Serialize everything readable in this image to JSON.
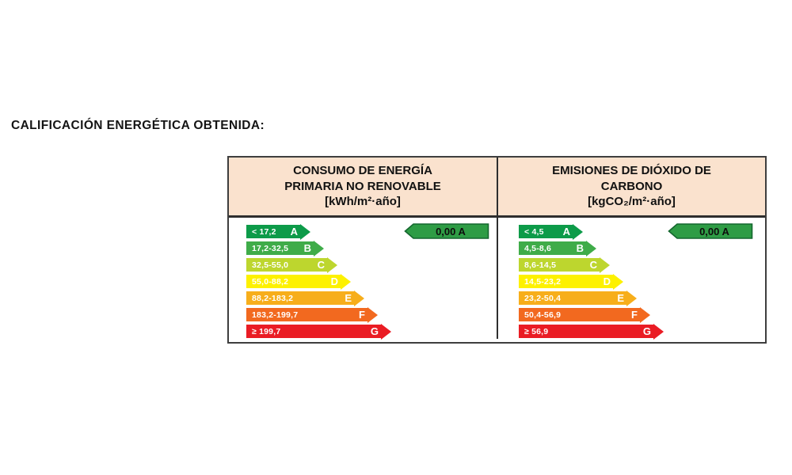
{
  "page": {
    "title": "CALIFICACIÓN ENERGÉTICA OBTENIDA:"
  },
  "table": {
    "columns": [
      {
        "header_lines": [
          "CONSUMO DE ENERGÍA",
          "PRIMARIA NO RENOVABLE",
          "[kWh/m²·año]"
        ],
        "rating": "0,00 A",
        "scale": [
          {
            "range": "< 17,2",
            "letter": "A",
            "color": "#0D9B49"
          },
          {
            "range": "17,2-32,5",
            "letter": "B",
            "color": "#3FAC49"
          },
          {
            "range": "32,5-55,0",
            "letter": "C",
            "color": "#BDD62E"
          },
          {
            "range": "55,0-88,2",
            "letter": "D",
            "color": "#FDF100"
          },
          {
            "range": "88,2-183,2",
            "letter": "E",
            "color": "#F7AE1B"
          },
          {
            "range": "183,2-199,7",
            "letter": "F",
            "color": "#F2691F"
          },
          {
            "range": "≥ 199,7",
            "letter": "G",
            "color": "#EA1C24"
          }
        ]
      },
      {
        "header_lines": [
          "EMISIONES DE DIÓXIDO DE",
          "CARBONO",
          "[kgCO₂/m²·año]"
        ],
        "rating": "0,00 A",
        "scale": [
          {
            "range": "< 4,5",
            "letter": "A",
            "color": "#0D9B49"
          },
          {
            "range": "4,5-8,6",
            "letter": "B",
            "color": "#3FAC49"
          },
          {
            "range": "8,6-14,5",
            "letter": "C",
            "color": "#BDD62E"
          },
          {
            "range": "14,5-23,2",
            "letter": "D",
            "color": "#FDF100"
          },
          {
            "range": "23,2-50,4",
            "letter": "E",
            "color": "#F7AE1B"
          },
          {
            "range": "50,4-56,9",
            "letter": "F",
            "color": "#F2691F"
          },
          {
            "range": "≥ 56,9",
            "letter": "G",
            "color": "#EA1C24"
          }
        ]
      }
    ]
  },
  "colors": {
    "rating_fill": "#2E9C45",
    "rating_stroke": "#14662E",
    "header_bg": "#FAE2CE",
    "table_border": "#3E3E3E"
  }
}
